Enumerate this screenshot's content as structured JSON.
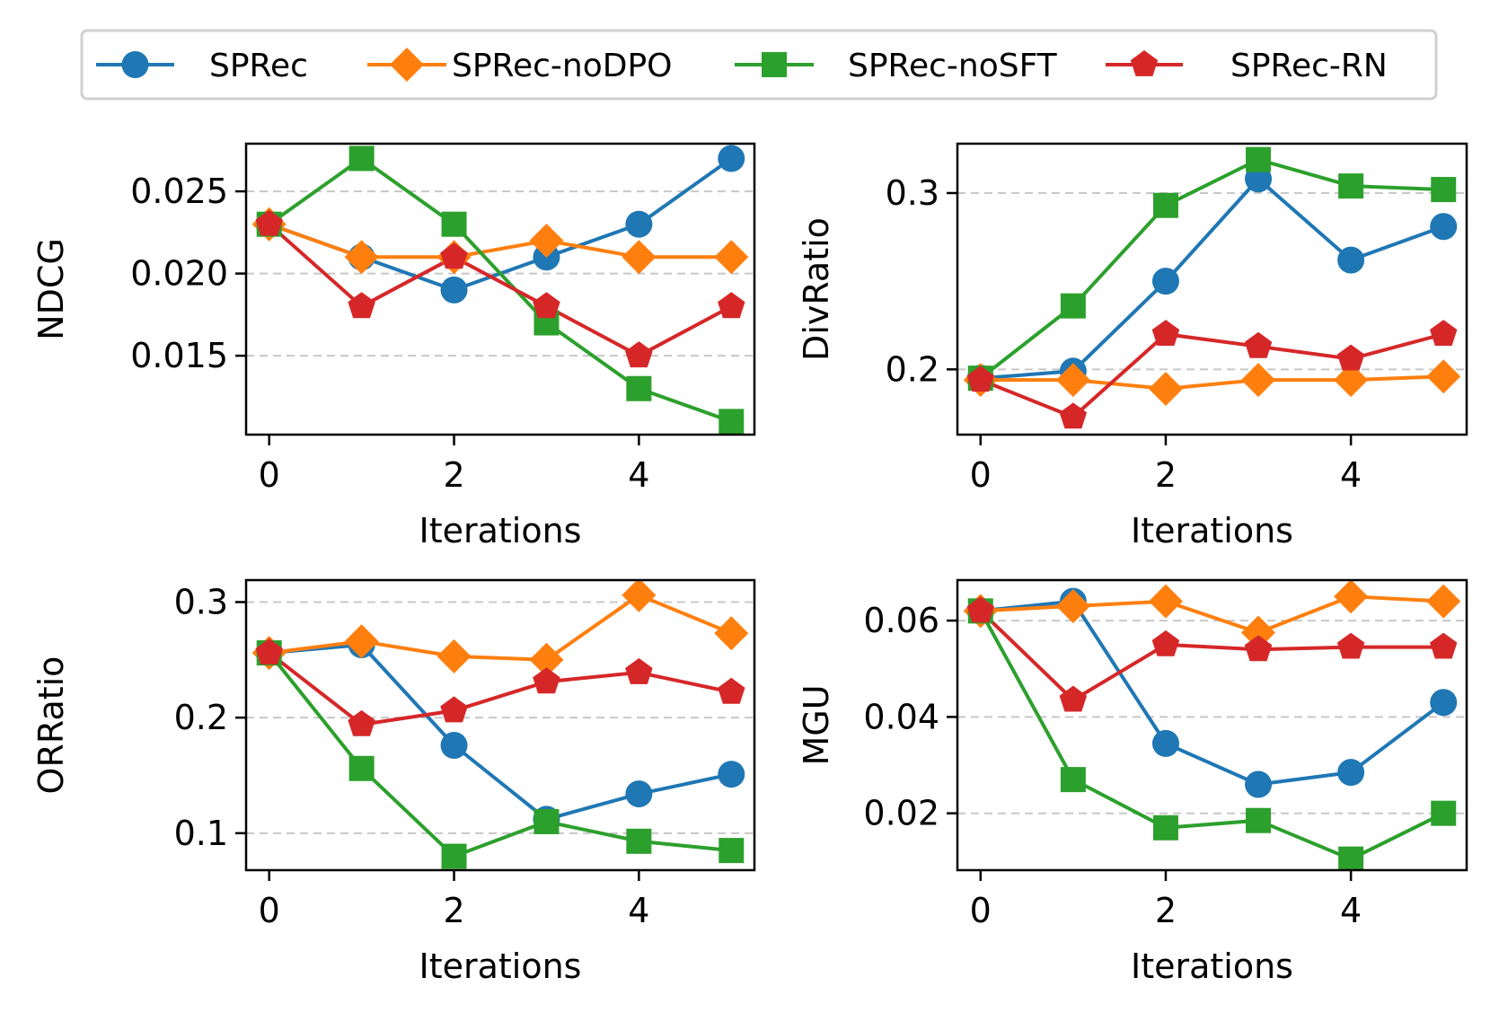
{
  "chart_data": [
    {
      "type": "line",
      "ylabel": "NDCG",
      "xlabel": "Iterations",
      "x": [
        0,
        1,
        2,
        3,
        4,
        5
      ],
      "xticks": [
        0,
        2,
        4
      ],
      "xlim": [
        -0.25,
        5.25
      ],
      "ylim": [
        0.0102,
        0.0279
      ],
      "yticks": [
        0.015,
        0.02,
        0.025
      ],
      "ytick_labels": [
        "0.015",
        "0.020",
        "0.025"
      ],
      "grid": "horizontal-dashed",
      "series": [
        {
          "name": "SPRec",
          "values": [
            0.023,
            0.021,
            0.019,
            0.021,
            0.023,
            0.027
          ]
        },
        {
          "name": "SPRec-noDPO",
          "values": [
            0.023,
            0.021,
            0.021,
            0.022,
            0.021,
            0.021
          ]
        },
        {
          "name": "SPRec-noSFT",
          "values": [
            0.023,
            0.027,
            0.023,
            0.017,
            0.013,
            0.011
          ]
        },
        {
          "name": "SPRec-RN",
          "values": [
            0.023,
            0.018,
            0.021,
            0.018,
            0.015,
            0.018
          ]
        }
      ]
    },
    {
      "type": "line",
      "ylabel": "DivRatio",
      "xlabel": "Iterations",
      "x": [
        0,
        1,
        2,
        3,
        4,
        5
      ],
      "xticks": [
        0,
        2,
        4
      ],
      "xlim": [
        -0.25,
        5.25
      ],
      "ylim": [
        0.163,
        0.328
      ],
      "yticks": [
        0.2,
        0.3
      ],
      "ytick_labels": [
        "0.2",
        "0.3"
      ],
      "grid": "horizontal-dashed",
      "series": [
        {
          "name": "SPRec",
          "values": [
            0.195,
            0.199,
            0.25,
            0.308,
            0.262,
            0.281
          ]
        },
        {
          "name": "SPRec-noDPO",
          "values": [
            0.194,
            0.194,
            0.189,
            0.194,
            0.194,
            0.196
          ]
        },
        {
          "name": "SPRec-noSFT",
          "values": [
            0.195,
            0.236,
            0.293,
            0.319,
            0.304,
            0.302
          ]
        },
        {
          "name": "SPRec-RN",
          "values": [
            0.194,
            0.173,
            0.22,
            0.213,
            0.206,
            0.22
          ]
        }
      ]
    },
    {
      "type": "line",
      "ylabel": "ORRatio",
      "xlabel": "Iterations",
      "x": [
        0,
        1,
        2,
        3,
        4,
        5
      ],
      "xticks": [
        0,
        2,
        4
      ],
      "xlim": [
        -0.25,
        5.25
      ],
      "ylim": [
        0.068,
        0.319
      ],
      "yticks": [
        0.1,
        0.2,
        0.3
      ],
      "ytick_labels": [
        "0.1",
        "0.2",
        "0.3"
      ],
      "grid": "horizontal-dashed",
      "series": [
        {
          "name": "SPRec",
          "values": [
            0.256,
            0.263,
            0.176,
            0.112,
            0.134,
            0.151
          ]
        },
        {
          "name": "SPRec-noDPO",
          "values": [
            0.256,
            0.266,
            0.253,
            0.25,
            0.306,
            0.273
          ]
        },
        {
          "name": "SPRec-noSFT",
          "values": [
            0.256,
            0.156,
            0.08,
            0.11,
            0.093,
            0.085
          ]
        },
        {
          "name": "SPRec-RN",
          "values": [
            0.256,
            0.194,
            0.206,
            0.231,
            0.239,
            0.222
          ]
        }
      ]
    },
    {
      "type": "line",
      "ylabel": "MGU",
      "xlabel": "Iterations",
      "x": [
        0,
        1,
        2,
        3,
        4,
        5
      ],
      "xticks": [
        0,
        2,
        4
      ],
      "xlim": [
        -0.25,
        5.25
      ],
      "ylim": [
        0.0082,
        0.0684
      ],
      "yticks": [
        0.02,
        0.04,
        0.06
      ],
      "ytick_labels": [
        "0.02",
        "0.04",
        "0.06"
      ],
      "grid": "horizontal-dashed",
      "series": [
        {
          "name": "SPRec",
          "values": [
            0.062,
            0.064,
            0.0345,
            0.026,
            0.0285,
            0.043
          ]
        },
        {
          "name": "SPRec-noDPO",
          "values": [
            0.062,
            0.063,
            0.064,
            0.0575,
            0.065,
            0.064
          ]
        },
        {
          "name": "SPRec-noSFT",
          "values": [
            0.062,
            0.027,
            0.017,
            0.0185,
            0.0105,
            0.02
          ]
        },
        {
          "name": "SPRec-RN",
          "values": [
            0.062,
            0.0435,
            0.055,
            0.054,
            0.0545,
            0.0545
          ]
        }
      ]
    }
  ],
  "legend": {
    "placement": "top-center",
    "entries": [
      {
        "name": "SPRec",
        "color": "#1f77b4",
        "marker": "circle"
      },
      {
        "name": "SPRec-noDPO",
        "color": "#ff7f0e",
        "marker": "diamond"
      },
      {
        "name": "SPRec-noSFT",
        "color": "#2ca02c",
        "marker": "square"
      },
      {
        "name": "SPRec-RN",
        "color": "#d62728",
        "marker": "pentagon"
      }
    ]
  }
}
